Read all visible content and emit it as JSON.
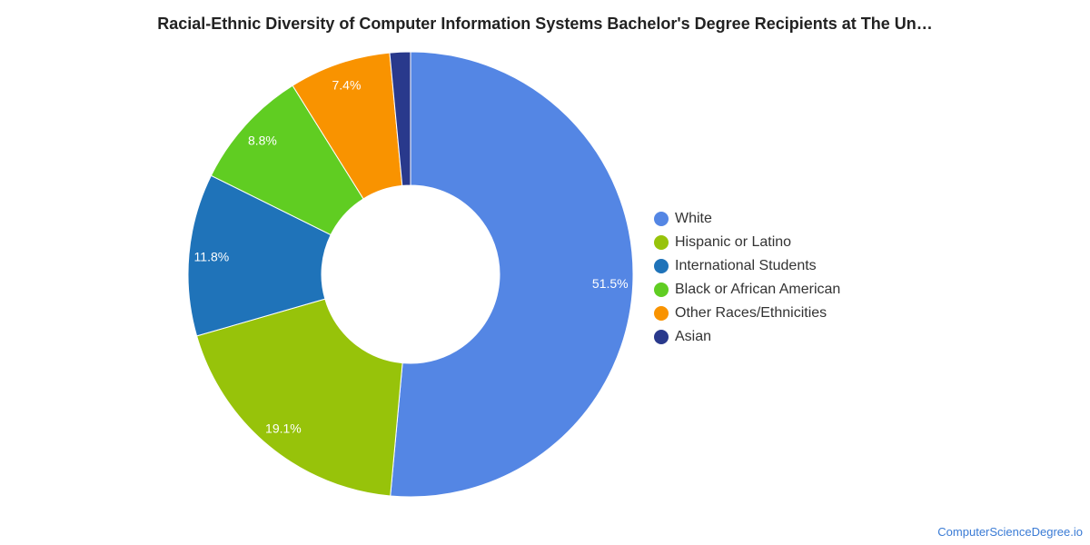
{
  "title": "Racial-Ethnic Diversity of Computer Information Systems Bachelor's Degree Recipients at The Un…",
  "source": "ComputerScienceDegree.io",
  "chart_data": {
    "type": "pie",
    "donut": true,
    "start_angle_deg": 0,
    "direction": "clockwise",
    "legend_position": "right",
    "categories": [
      "White",
      "Hispanic or Latino",
      "International Students",
      "Black or African American",
      "Other Races/Ethnicities",
      "Asian"
    ],
    "values": [
      51.5,
      19.1,
      11.8,
      8.8,
      7.4,
      1.5
    ],
    "labels": [
      "51.5%",
      "19.1%",
      "11.8%",
      "8.8%",
      "7.4%",
      ""
    ],
    "colors": [
      "#5486e4",
      "#97c30a",
      "#1f73b9",
      "#60cd22",
      "#f99300",
      "#29398c"
    ]
  }
}
